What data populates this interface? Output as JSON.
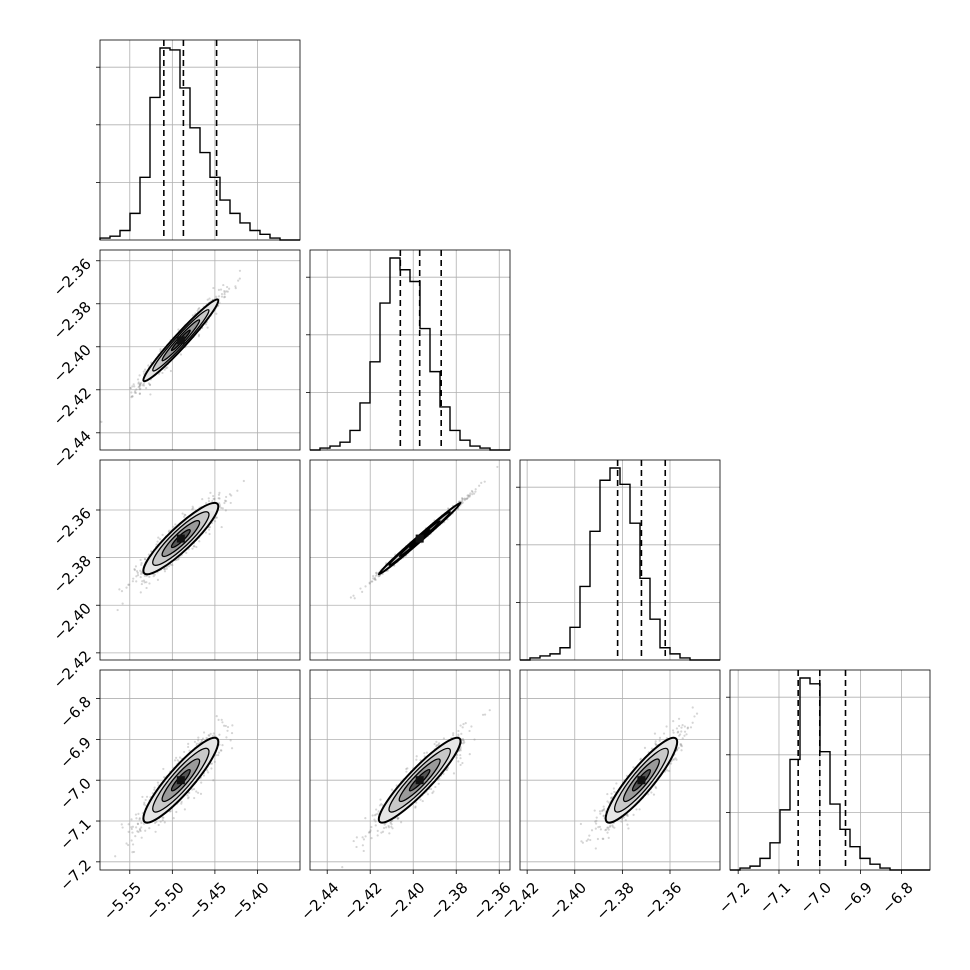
{
  "chart_data": {
    "type": "corner",
    "title": "",
    "grid": true,
    "colors": {
      "ink": "#000000",
      "grid": "#b0b0b0",
      "scatter": "#888888",
      "fill_light": "#e6e6e6",
      "fill_mid": "#9a9a9a",
      "fill_dark": "#555555"
    },
    "parameters": [
      {
        "index": 0,
        "range": [
          -5.585,
          -5.35
        ],
        "ticks": [
          -5.55,
          -5.5,
          -5.45,
          -5.4
        ],
        "tick_labels": [
          "−5.55",
          "−5.50",
          "−5.45",
          "−5.40"
        ],
        "mean": -5.49,
        "std": 0.022,
        "quantiles": [
          -5.51,
          -5.487,
          -5.448
        ]
      },
      {
        "index": 1,
        "range": [
          -2.448,
          -2.355
        ],
        "ticks": [
          -2.44,
          -2.42,
          -2.4,
          -2.38,
          -2.36
        ],
        "tick_labels": [
          "−2.44",
          "−2.42",
          "−2.40",
          "−2.38",
          "−2.36"
        ],
        "mean": -2.397,
        "std": 0.0095,
        "quantiles": [
          -2.406,
          -2.397,
          -2.387
        ]
      },
      {
        "index": 2,
        "range": [
          -2.423,
          -2.339
        ],
        "ticks": [
          -2.42,
          -2.4,
          -2.38,
          -2.36
        ],
        "tick_labels": [
          "−2.42",
          "−2.40",
          "−2.38",
          "−2.36"
        ],
        "mean": -2.372,
        "std": 0.0075,
        "quantiles": [
          -2.382,
          -2.372,
          -2.362
        ]
      },
      {
        "index": 3,
        "range": [
          -7.22,
          -6.73
        ],
        "ticks": [
          -7.2,
          -7.1,
          -7.0,
          -6.9,
          -6.8
        ],
        "tick_labels": [
          "−7.2",
          "−7.1",
          "−7.0",
          "−6.9",
          "−6.8"
        ],
        "mean": -7.0,
        "std": 0.052,
        "quantiles": [
          -7.053,
          -7.0,
          -6.937
        ]
      }
    ],
    "histograms": [
      {
        "param": 0,
        "bins": 20,
        "counts": [
          1,
          2,
          5,
          14,
          33,
          75,
          101,
          100,
          80,
          59,
          46,
          33,
          21,
          14,
          9,
          5,
          3,
          1,
          0,
          0
        ]
      },
      {
        "param": 1,
        "bins": 20,
        "counts": [
          0,
          1,
          2,
          4,
          10,
          24,
          45,
          75,
          98,
          92,
          86,
          62,
          40,
          22,
          10,
          5,
          2,
          1,
          0,
          0
        ]
      },
      {
        "param": 2,
        "bins": 20,
        "counts": [
          0,
          1,
          2,
          3,
          6,
          16,
          36,
          63,
          88,
          94,
          86,
          67,
          40,
          20,
          6,
          3,
          1,
          0,
          0,
          0
        ]
      },
      {
        "param": 3,
        "bins": 20,
        "counts": [
          0,
          1,
          2,
          6,
          14,
          31,
          57,
          99,
          96,
          61,
          34,
          21,
          12,
          6,
          3,
          1,
          0,
          0,
          0,
          0
        ]
      }
    ],
    "pairs": [
      {
        "x": 0,
        "y": 1,
        "correlation": 0.97
      },
      {
        "x": 0,
        "y": 2,
        "correlation": 0.9
      },
      {
        "x": 1,
        "y": 2,
        "correlation": 0.995
      },
      {
        "x": 0,
        "y": 3,
        "correlation": 0.9
      },
      {
        "x": 1,
        "y": 3,
        "correlation": 0.92
      },
      {
        "x": 2,
        "y": 3,
        "correlation": 0.9
      }
    ],
    "contour_levels_sigma": [
      0.5,
      1.0,
      1.5,
      2.0
    ]
  }
}
